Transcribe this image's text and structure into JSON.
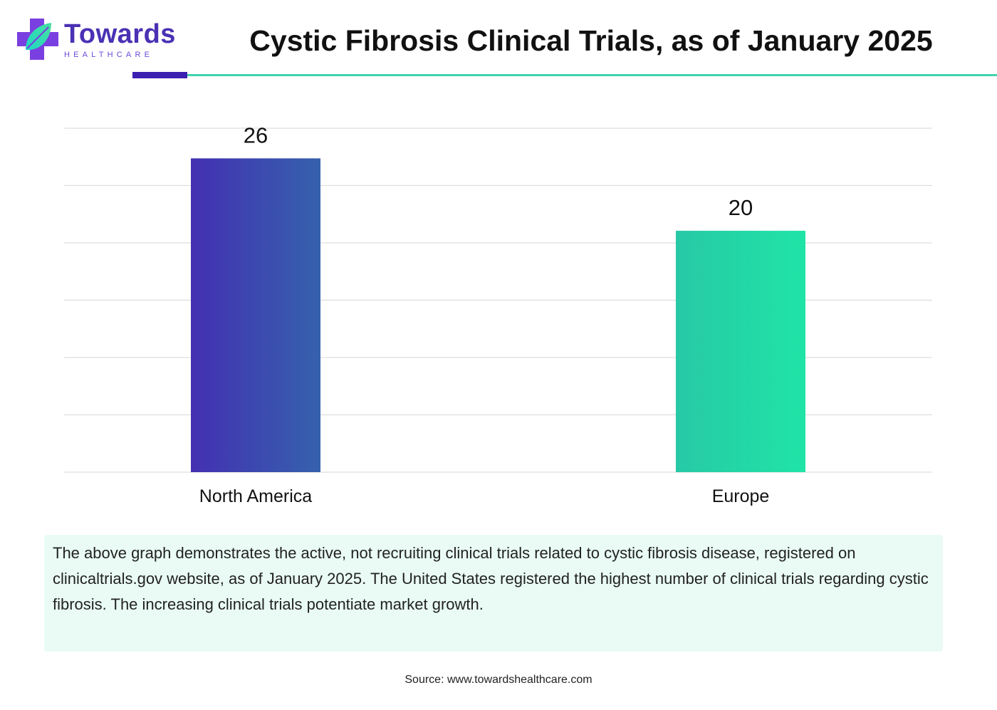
{
  "header": {
    "logo_name": "Towards",
    "logo_sub": "HEALTHCARE",
    "title": "Cystic Fibrosis Clinical Trials, as of January 2025"
  },
  "colors": {
    "brand_purple": "#4a31b4",
    "accent_green": "#3fd4ad",
    "note_background": "#e9fbf4"
  },
  "chart_data": {
    "type": "bar",
    "categories": [
      "North America",
      "Europe"
    ],
    "values": [
      26,
      20
    ],
    "ylim": [
      0,
      28.5
    ],
    "grid": true,
    "legend": "none",
    "bar_colors": [
      [
        "#4330b2",
        "#3661ad"
      ],
      [
        "#27c9a6",
        "#20e4a7"
      ]
    ]
  },
  "note": {
    "text": "The above graph demonstrates the active, not recruiting clinical trials related to cystic fibrosis disease, registered on clinicaltrials.gov website, as of January 2025. The United States registered the highest number of clinical trials regarding cystic fibrosis. The increasing clinical trials potentiate market growth."
  },
  "source": {
    "text": "Source: www.towardshealthcare.com"
  }
}
